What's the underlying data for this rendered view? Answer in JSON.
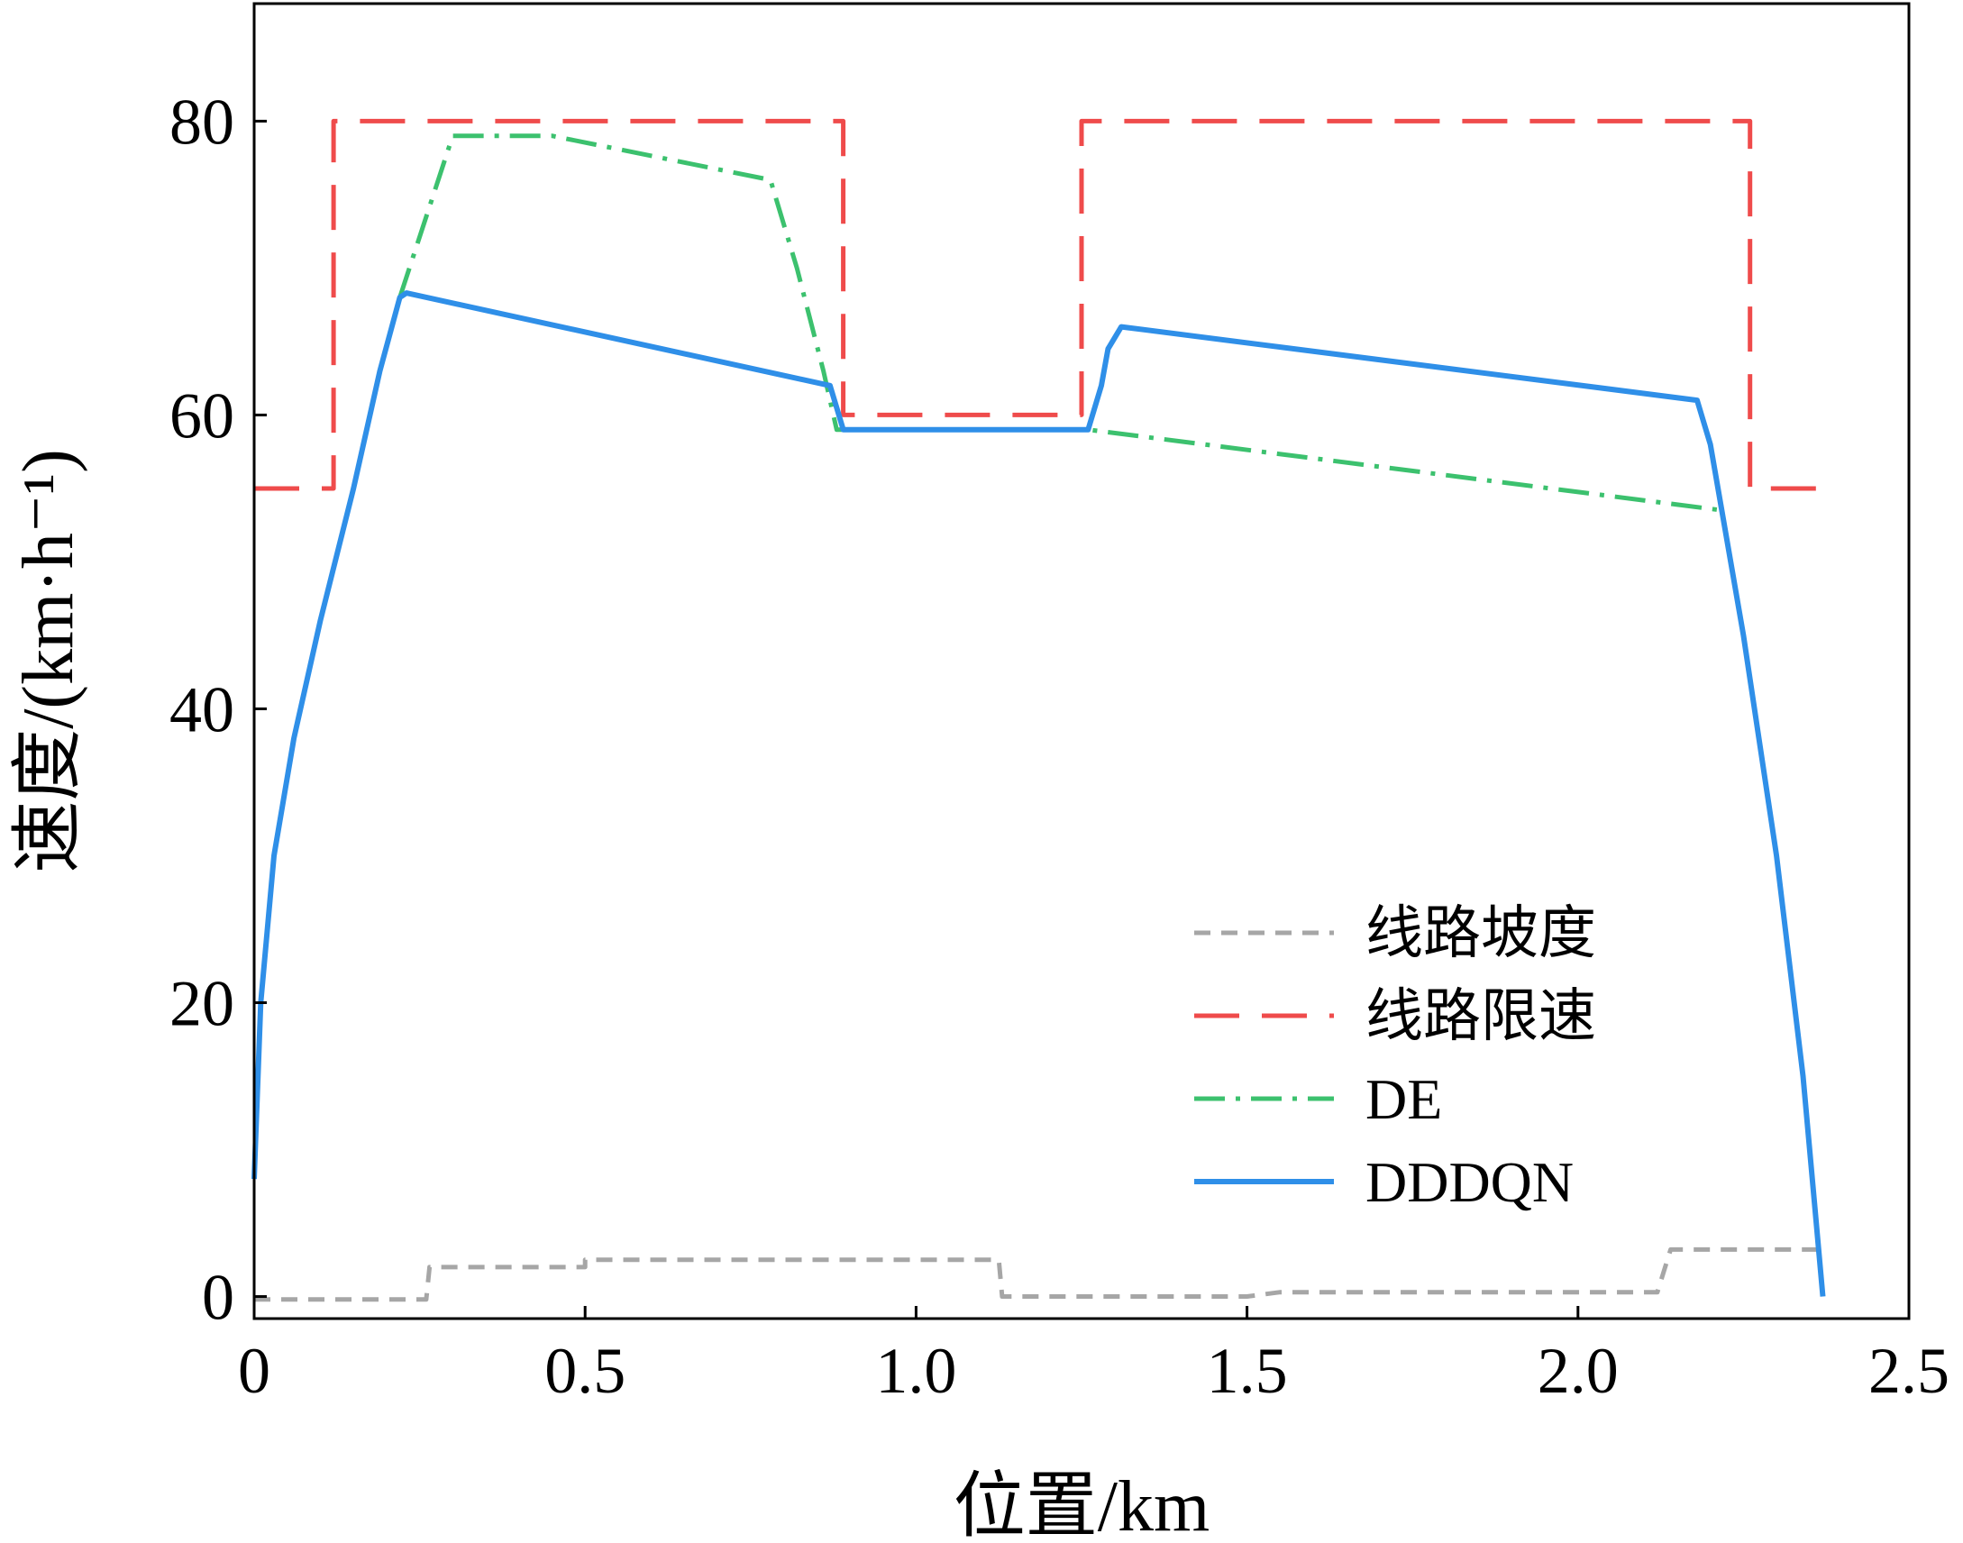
{
  "chart_data": {
    "type": "line",
    "title": "",
    "xlabel": "位置/km",
    "ylabel": "速度/(km·h⁻¹)",
    "xlim": [
      0,
      2.5
    ],
    "ylim": [
      -1.5,
      88
    ],
    "x_ticks": [
      0,
      0.5,
      1.0,
      1.5,
      2.0,
      2.5
    ],
    "x_tick_labels": [
      "0",
      "0.5",
      "1.0",
      "1.5",
      "2.0",
      "2.5"
    ],
    "y_ticks": [
      0,
      20,
      40,
      60,
      80
    ],
    "y_tick_labels": [
      "0",
      "20",
      "40",
      "60",
      "80"
    ],
    "grid": false,
    "legend_position": "lower-right",
    "series": [
      {
        "name": "线路坡度",
        "color": "#a6a6a6",
        "dash": "dashed",
        "x": [
          0,
          0.26,
          0.265,
          0.5,
          0.5,
          1.125,
          1.13,
          1.5,
          1.55,
          2.12,
          2.14,
          2.37
        ],
        "y": [
          -0.2,
          -0.2,
          2,
          2,
          2.5,
          2.5,
          0,
          0,
          0.3,
          0.3,
          3.2,
          3.2
        ]
      },
      {
        "name": "线路限速",
        "color": "#ef4b4b",
        "dash": "long-dashed",
        "x": [
          0,
          0.12,
          0.12,
          0.89,
          0.89,
          1.25,
          1.25,
          2.26,
          2.26,
          2.37
        ],
        "y": [
          55,
          55,
          80,
          80,
          60,
          60,
          80,
          80,
          55,
          55
        ]
      },
      {
        "name": "DE",
        "color": "#3cc16e",
        "dash": "dash-dot",
        "x": [
          0.22,
          0.3,
          0.45,
          0.78,
          0.82,
          0.86,
          0.88,
          1.26,
          2.22
        ],
        "y": [
          68,
          79,
          79,
          76,
          70,
          63,
          59,
          59,
          53.5
        ]
      },
      {
        "name": "DDDQN",
        "color": "#2f8fe8",
        "dash": "solid",
        "x": [
          0,
          0.01,
          0.03,
          0.06,
          0.1,
          0.15,
          0.19,
          0.22,
          0.23,
          0.87,
          0.88,
          0.89,
          1.26,
          1.28,
          1.29,
          1.31,
          2.18,
          2.2,
          2.25,
          2.3,
          2.34,
          2.36,
          2.37
        ],
        "y": [
          8,
          20,
          30,
          38,
          46,
          55,
          63,
          68,
          68.3,
          62,
          60.5,
          59,
          59,
          62,
          64.5,
          66,
          61,
          58,
          45,
          30,
          15,
          5,
          0
        ]
      }
    ]
  }
}
